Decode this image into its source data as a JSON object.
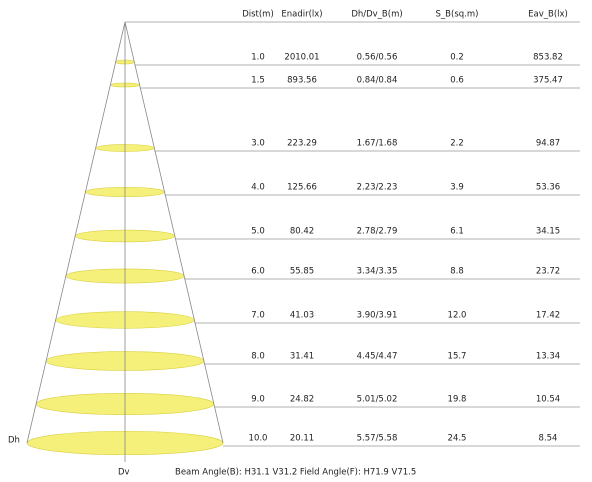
{
  "table": {
    "headers": [
      "Dist(m)",
      "Enadir(lx)",
      "Dh/Dv_B(m)",
      "S_B(sq.m)",
      "Eav_B(lx)"
    ],
    "rows": [
      [
        "1.0",
        "2010.01",
        "0.56/0.56",
        "0.2",
        "853.82"
      ],
      [
        "1.5",
        "893.56",
        "0.84/0.84",
        "0.6",
        "375.47"
      ],
      [
        "3.0",
        "223.29",
        "1.67/1.68",
        "2.2",
        "94.87"
      ],
      [
        "4.0",
        "125.66",
        "2.23/2.23",
        "3.9",
        "53.36"
      ],
      [
        "5.0",
        "80.42",
        "2.78/2.79",
        "6.1",
        "34.15"
      ],
      [
        "6.0",
        "55.85",
        "3.34/3.35",
        "8.8",
        "23.72"
      ],
      [
        "7.0",
        "41.03",
        "3.90/3.91",
        "12.0",
        "17.42"
      ],
      [
        "8.0",
        "31.41",
        "4.45/4.47",
        "15.7",
        "13.34"
      ],
      [
        "9.0",
        "24.82",
        "5.01/5.02",
        "19.8",
        "10.54"
      ],
      [
        "10.0",
        "20.11",
        "5.57/5.58",
        "24.5",
        "8.54"
      ]
    ]
  },
  "labels": {
    "dh": "Dh",
    "dv": "Dv"
  },
  "footer": "Beam Angle(B): H31.1 V31.2  Field Angle(F): H71.9 V71.5"
}
